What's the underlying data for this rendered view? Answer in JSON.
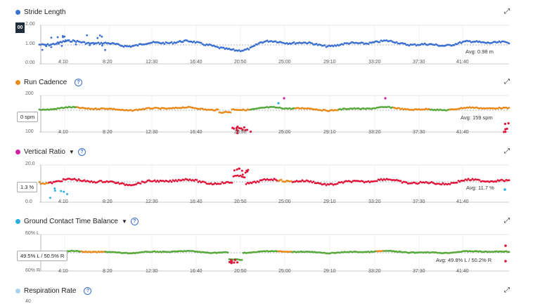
{
  "xticks": [
    "4:10",
    "8:20",
    "12:30",
    "16:40",
    "20:50",
    "25:00",
    "29:10",
    "33:20",
    "37:30",
    "41:40"
  ],
  "colors": {
    "blue": "#3b6fd1",
    "green": "#58a83c",
    "orange": "#e88a1a",
    "red": "#e0153a",
    "magenta": "#d020a0",
    "cyan": "#2ab0e0",
    "lightblue": "#a8d4f0"
  },
  "panels": {
    "stride": {
      "title": "Stride Length",
      "y_top": "2.00",
      "y_mid": "1.00",
      "y_bot": "0.00",
      "avg": "Avg: 0.98 m",
      "marker": "00"
    },
    "cadence": {
      "title": "Run Cadence",
      "y_top": "200",
      "y_bot": "100",
      "avg": "Avg: 159 spm",
      "callout": "0 spm"
    },
    "vratio": {
      "title": "Vertical Ratio",
      "y_top": "20.0",
      "y_bot": "0.0",
      "avg": "Avg: 11.7 %",
      "callout": "1.3 %"
    },
    "gct": {
      "title": "Ground Contact Time Balance",
      "y_top": "60% L",
      "y_bot": "60% R",
      "avg": "Avg: 49.8% L / 50.2% R",
      "callout": "49.5% L / 50.5% R"
    },
    "resp": {
      "title": "Respiration Rate",
      "y_top": "40"
    }
  }
}
